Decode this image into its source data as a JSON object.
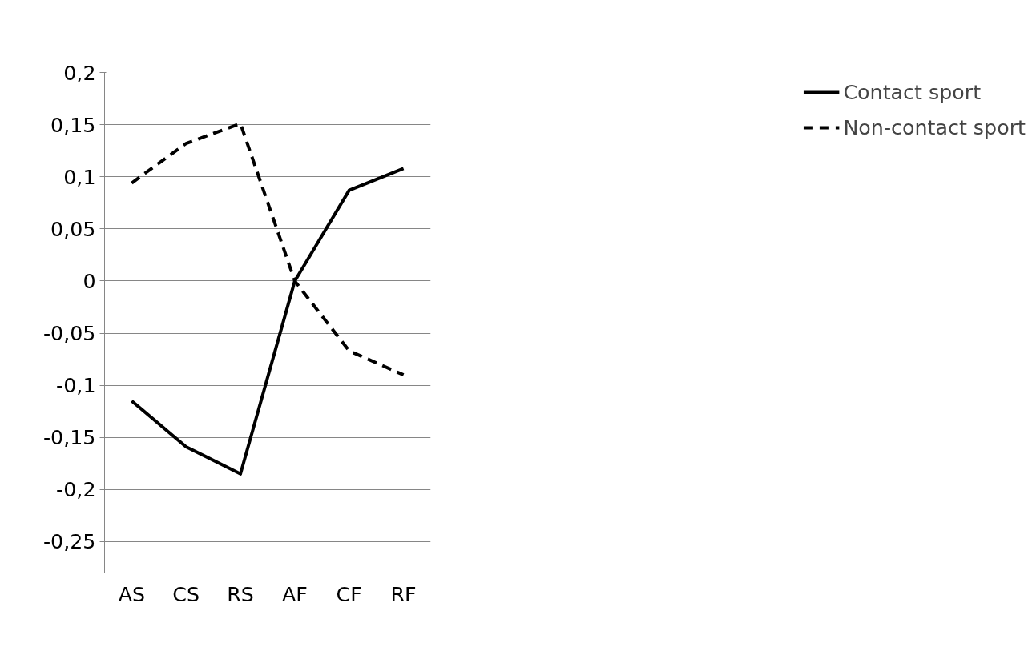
{
  "chart_data": {
    "type": "line",
    "categories": [
      "AS",
      "CS",
      "RS",
      "AF",
      "CF",
      "RF"
    ],
    "series": [
      {
        "name": "Contact sport",
        "color": "#000000",
        "line_style": "solid",
        "values": [
          -0.115,
          -0.159,
          -0.185,
          0.0,
          0.087,
          0.108
        ]
      },
      {
        "name": "Non-contact sport",
        "color": "#000000",
        "line_style": "dashed",
        "values": [
          0.094,
          0.132,
          0.151,
          0.0,
          -0.067,
          -0.09
        ]
      }
    ],
    "ylim": [
      -0.28,
      0.2
    ],
    "yticks": [
      {
        "value": 0.2,
        "label": "0,2"
      },
      {
        "value": 0.15,
        "label": "0,15"
      },
      {
        "value": 0.1,
        "label": "0,1"
      },
      {
        "value": 0.05,
        "label": "0,05"
      },
      {
        "value": 0,
        "label": "0"
      },
      {
        "value": -0.05,
        "label": "-0,05"
      },
      {
        "value": -0.1,
        "label": "-0,1"
      },
      {
        "value": -0.15,
        "label": "-0,15"
      },
      {
        "value": -0.2,
        "label": "-0,2"
      },
      {
        "value": -0.25,
        "label": "-0,25"
      }
    ],
    "grid": "y",
    "legend": "right",
    "marker": "none"
  }
}
